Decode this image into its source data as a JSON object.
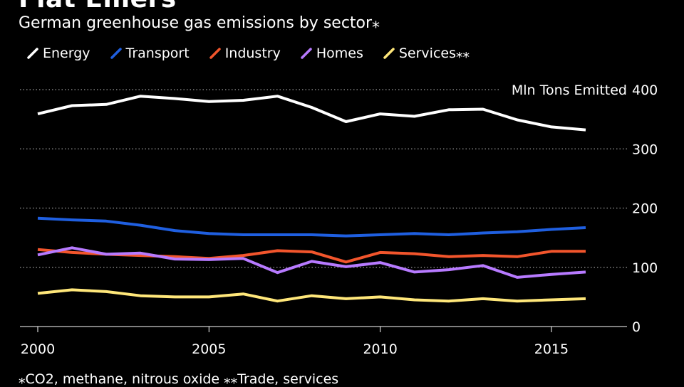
{
  "title": "Flat Emers",
  "subtitle": "German greenhouse gas emissions by sector⁎",
  "footnote": "⁎CO2, methane, nitrous oxide ⁎⁎Trade, services",
  "chart_data": {
    "type": "line",
    "unit_label": "Mln Tons Emitted",
    "x": [
      2000,
      2001,
      2002,
      2003,
      2004,
      2005,
      2006,
      2007,
      2008,
      2009,
      2010,
      2011,
      2012,
      2013,
      2014,
      2015,
      2016
    ],
    "x_ticks": [
      2000,
      2005,
      2010,
      2015
    ],
    "y_ticks": [
      0,
      100,
      200,
      300,
      400
    ],
    "ylim": [
      0,
      400
    ],
    "xlim": [
      2000,
      2016
    ],
    "grid": true,
    "series": [
      {
        "name": "Energy",
        "color": "#ffffff",
        "values": [
          359,
          373,
          375,
          389,
          385,
          380,
          382,
          389,
          370,
          346,
          359,
          355,
          366,
          367,
          349,
          337,
          332
        ]
      },
      {
        "name": "Transport",
        "color": "#1f5fe0",
        "values": [
          183,
          180,
          178,
          171,
          162,
          157,
          155,
          155,
          155,
          153,
          155,
          157,
          155,
          158,
          160,
          164,
          167
        ]
      },
      {
        "name": "Industry",
        "color": "#f2552c",
        "values": [
          130,
          125,
          122,
          120,
          118,
          115,
          120,
          128,
          126,
          109,
          125,
          123,
          118,
          120,
          118,
          127,
          127
        ]
      },
      {
        "name": "Homes",
        "color": "#b77aff",
        "values": [
          121,
          133,
          122,
          124,
          114,
          113,
          115,
          91,
          110,
          101,
          108,
          92,
          96,
          103,
          83,
          88,
          92
        ]
      },
      {
        "name": "Services⁎⁎",
        "color": "#ffe77a",
        "values": [
          56,
          62,
          59,
          52,
          50,
          50,
          55,
          43,
          52,
          47,
          50,
          45,
          43,
          47,
          43,
          45,
          47
        ]
      }
    ]
  }
}
